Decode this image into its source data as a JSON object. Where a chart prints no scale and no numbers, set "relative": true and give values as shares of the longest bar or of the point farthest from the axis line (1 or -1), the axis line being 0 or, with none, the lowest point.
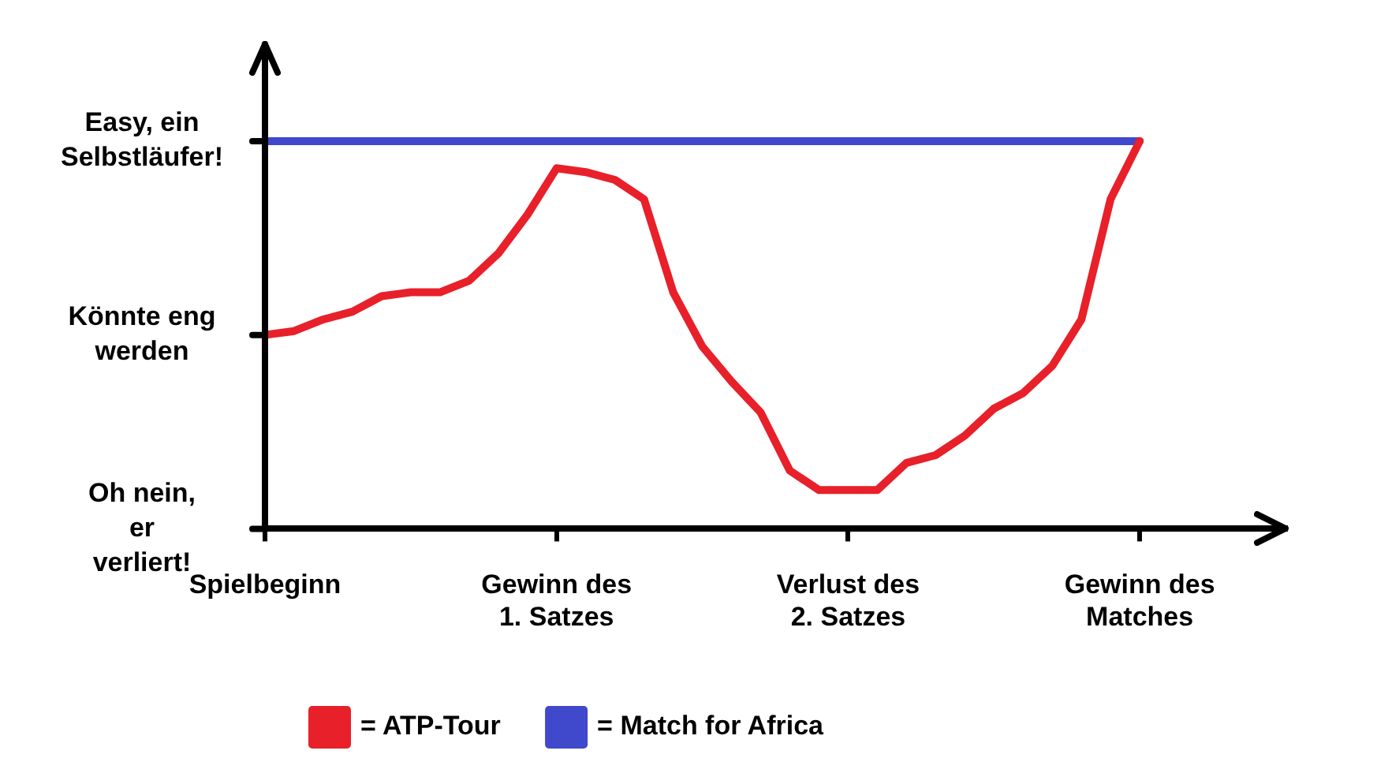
{
  "chart_data": {
    "type": "line",
    "relative": true,
    "categories": [
      "Spielbeginn",
      null,
      null,
      null,
      null,
      null,
      null,
      null,
      null,
      null,
      "Gewinn des 1. Satzes",
      null,
      null,
      null,
      null,
      null,
      null,
      null,
      null,
      null,
      "Verlust des 2. Satzes",
      null,
      null,
      null,
      null,
      null,
      null,
      null,
      null,
      null,
      "Gewinn des Matches",
      null,
      null,
      null,
      null,
      null
    ],
    "annotations": [
      "Oh nein, er verliert!",
      "Könnte eng werden",
      "Easy, ein Selbstläufer!"
    ],
    "series": [
      {
        "name": "= ATP-Tour",
        "color": "#e8202a",
        "values": [
          0.5,
          0.51,
          0.54,
          0.56,
          0.6,
          0.61,
          0.61,
          0.64,
          0.71,
          0.81,
          0.93,
          0.92,
          0.9,
          0.85,
          0.61,
          0.47,
          0.38,
          0.3,
          0.15,
          0.1,
          0.1,
          0.1,
          0.17,
          0.19,
          0.24,
          0.31,
          0.35,
          0.42,
          0.54,
          0.85,
          1,
          null,
          null,
          null,
          null,
          null
        ]
      },
      {
        "name": "= Match for Africa",
        "color": "#4048cc",
        "values": [
          1,
          1,
          1,
          1,
          1,
          1,
          1,
          1,
          1,
          1,
          1,
          1,
          1,
          1,
          1,
          1,
          1,
          1,
          1,
          1,
          1,
          1,
          1,
          1,
          1,
          1,
          1,
          1,
          1,
          1,
          1,
          null,
          null,
          null,
          null,
          null
        ]
      }
    ],
    "legend": "bottom left",
    "marker": "none"
  }
}
